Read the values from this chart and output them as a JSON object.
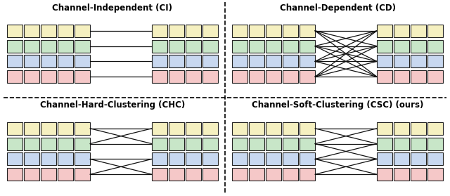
{
  "colors": [
    "#f5f0c0",
    "#c8e6c8",
    "#c8d8f0",
    "#f5c8c8"
  ],
  "edge_color": "#222222",
  "bg_color": "#ffffff",
  "titles": [
    "Channel-Independent (CI)",
    "Channel-Dependent (CD)",
    "Channel-Hard-Clustering (CHC)",
    "Channel-Soft-Clustering (CSC) (ours)"
  ],
  "title_fontsize": 8.5,
  "panels": [
    {
      "col": 0,
      "row": 0,
      "conn": "CI"
    },
    {
      "col": 1,
      "row": 0,
      "conn": "CD"
    },
    {
      "col": 0,
      "row": 1,
      "conn": "CHC"
    },
    {
      "col": 1,
      "row": 1,
      "conn": "CSC"
    }
  ]
}
